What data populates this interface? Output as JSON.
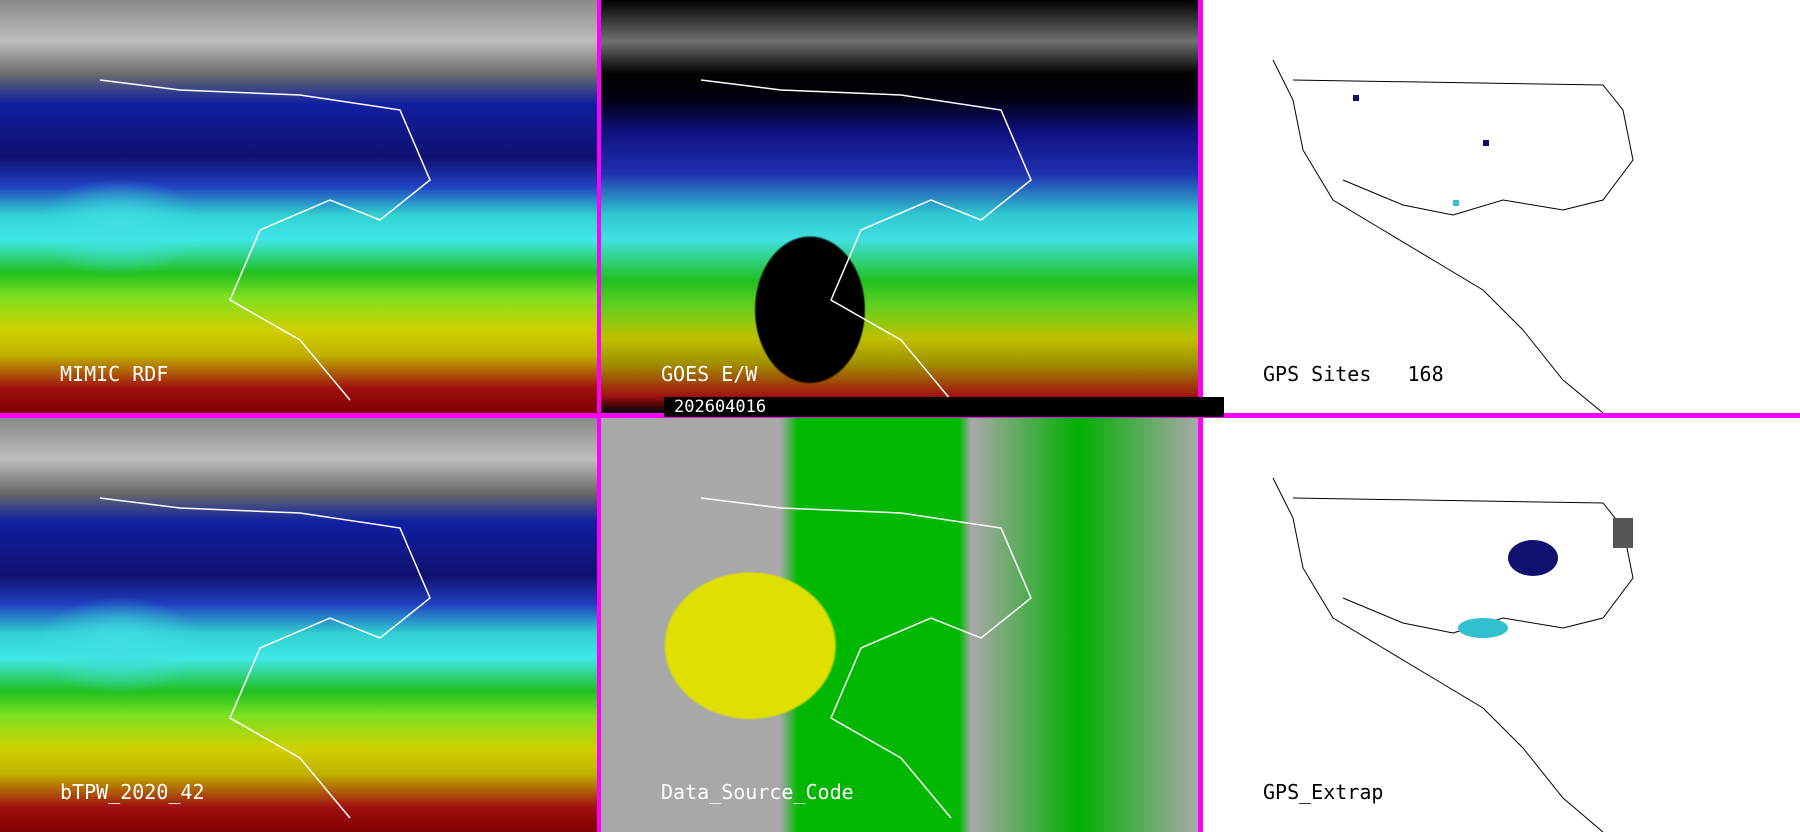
{
  "panels": [
    {
      "label": "MIMIC RDF",
      "type": "satellite-tpw"
    },
    {
      "label": "GOES E/W",
      "type": "satellite-tpw"
    },
    {
      "label": "GPS Sites",
      "count": "168",
      "type": "station-map"
    },
    {
      "label": "bTPW_2020_42",
      "type": "satellite-tpw"
    },
    {
      "label": "Data_Source_Code",
      "type": "source-code-map"
    },
    {
      "label": "GPS_Extrap",
      "type": "station-map"
    }
  ],
  "timestamp": "202604016",
  "colors": {
    "divider": "#ff00ff",
    "moist": "#40e0e0",
    "dry": "#101070",
    "very_moist": "#a01010"
  }
}
